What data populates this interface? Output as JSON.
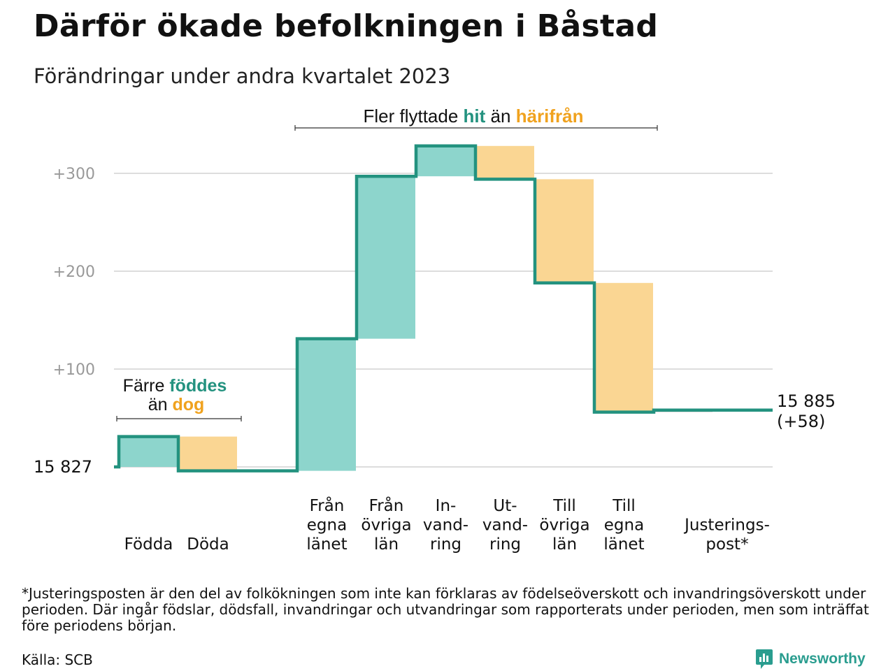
{
  "header": {
    "title": "Därför ökade befolkningen i Båstad",
    "subtitle": "Förändringar under andra kvartalet 2023"
  },
  "annotations": {
    "births": {
      "line1_pre": "Färre ",
      "line1_em": "föddes",
      "line2_pre": "än ",
      "line2_em": "dog"
    },
    "migration": {
      "pre": "Fler flyttade ",
      "em1": "hit",
      "mid": " än ",
      "em2": "härifrån"
    }
  },
  "colors": {
    "inflow": "#8dd5cc",
    "outflow": "#fad693",
    "line": "#23927f",
    "inflow_text": "#23927f",
    "outflow_text": "#f0a21e",
    "grid": "#dddddd",
    "tick_text": "#999999"
  },
  "chart_data": {
    "type": "waterfall",
    "start_label": "15  827",
    "end_label": "15 885",
    "end_change_label": "(+58)",
    "y_ticks": [
      "+100",
      "+200",
      "+300"
    ],
    "y_tick_values": [
      100,
      200,
      300
    ],
    "ylim": [
      -8,
      330
    ],
    "categories": [
      {
        "label": [
          "Födda"
        ],
        "change": 31,
        "kind": "inflow"
      },
      {
        "label": [
          "Döda"
        ],
        "change": -35,
        "kind": "outflow"
      },
      {
        "label": [],
        "change": 0,
        "kind": "none"
      },
      {
        "label": [
          "Från",
          "egna",
          "länet"
        ],
        "change": 135,
        "kind": "inflow"
      },
      {
        "label": [
          "Från",
          "övriga",
          "län"
        ],
        "change": 166,
        "kind": "inflow"
      },
      {
        "label": [
          "In-",
          "vand-",
          "ring"
        ],
        "change": 31,
        "kind": "inflow"
      },
      {
        "label": [
          "Ut-",
          "vand-",
          "ring"
        ],
        "change": -34,
        "kind": "outflow"
      },
      {
        "label": [
          "Till",
          "övriga",
          "län"
        ],
        "change": -106,
        "kind": "outflow"
      },
      {
        "label": [
          "Till",
          "egna",
          "länet"
        ],
        "change": -132,
        "kind": "outflow"
      },
      {
        "label": [
          "Justerings-",
          "post*"
        ],
        "change": 2,
        "kind": "adjustment"
      }
    ]
  },
  "footer": {
    "footnote": "*Justeringsposten är den del av folkökningen som inte kan förklaras av födelseöverskott och invandringsöverskott under perioden. Där ingår födslar, dödsfall, invandringar och utvandringar som rapporterats under perioden, men som inträffat före periodens början.",
    "source": "Källa: SCB",
    "brand": "Newsworthy",
    "brand_icon": "newsworthy-logo-icon"
  }
}
